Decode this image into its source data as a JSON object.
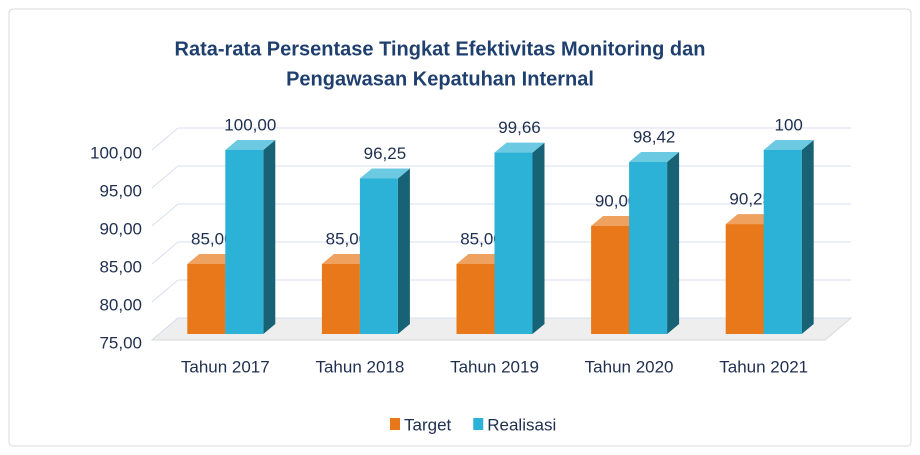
{
  "chart_data": {
    "type": "bar3d",
    "title": [
      "Rata-rata Persentase Tingkat Efektivitas Monitoring dan",
      "Pengawasan Kepatuhan Internal"
    ],
    "categories": [
      "Tahun 2017",
      "Tahun 2018",
      "Tahun 2019",
      "Tahun 2020",
      "Tahun 2021"
    ],
    "series": [
      {
        "name": "Target",
        "color": "#e8781a",
        "values": [
          85,
          85,
          85,
          90,
          90.25
        ],
        "value_labels": [
          "85,00",
          "85,00",
          "85,00",
          "90,00",
          "90,25"
        ]
      },
      {
        "name": "Realisasi",
        "color": "#2cb2d6",
        "values": [
          100,
          96.25,
          99.66,
          98.42,
          100
        ],
        "value_labels": [
          "100,00",
          "96,25",
          "99,66",
          "98,42",
          "100"
        ]
      }
    ],
    "ylim": [
      75,
      100
    ],
    "yticks": [
      {
        "value": 75,
        "label": "75,00"
      },
      {
        "value": 80,
        "label": "80,00"
      },
      {
        "value": 85,
        "label": "85,00"
      },
      {
        "value": 90,
        "label": "90,00"
      },
      {
        "value": 95,
        "label": "95,00"
      },
      {
        "value": 100,
        "label": "100,00"
      }
    ],
    "grid": true,
    "legend": "bottom"
  }
}
